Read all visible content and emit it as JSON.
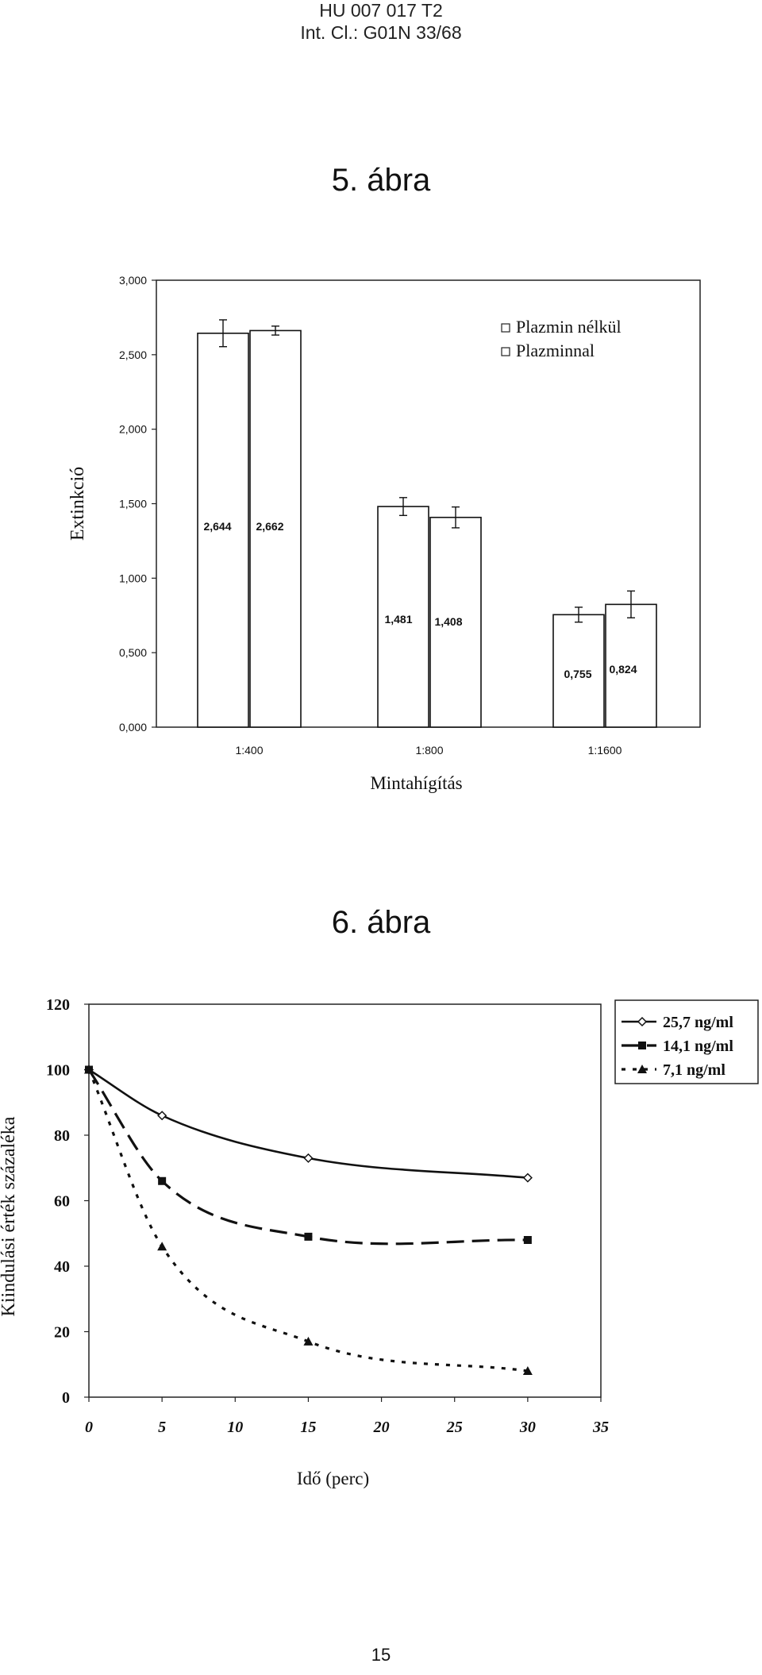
{
  "header": {
    "line1": "HU 007 017 T2",
    "line2": "Int. Cl.: G01N 33/68"
  },
  "figure5": {
    "title": "5. ábra"
  },
  "figure6": {
    "title": "6. ábra"
  },
  "page_number": "15",
  "chart_data": [
    {
      "type": "bar",
      "title": "5. ábra",
      "xlabel": "Mintahígítás",
      "ylabel": "Extinkció",
      "ylim": [
        0,
        3
      ],
      "yticks": [
        "0,000",
        "0,500",
        "1,000",
        "1,500",
        "2,000",
        "2,500",
        "3,000"
      ],
      "categories": [
        "1:400",
        "1:800",
        "1:1600"
      ],
      "series": [
        {
          "name": "Plazmin nélkül",
          "values": [
            2.644,
            1.481,
            0.755
          ],
          "labels": [
            "2,644",
            "1,481",
            "0,755"
          ],
          "errors": [
            0.09,
            0.06,
            0.05
          ]
        },
        {
          "name": "Plazminnal",
          "values": [
            2.662,
            1.408,
            0.824
          ],
          "labels": [
            "2,662",
            "1,408",
            "0,824"
          ],
          "errors": [
            0.03,
            0.07,
            0.09
          ]
        }
      ],
      "legend": "top-right",
      "grid": false
    },
    {
      "type": "line",
      "title": "6. ábra",
      "xlabel": "Idő (perc)",
      "ylabel": "Kiindulási érték százaléka",
      "xlim": [
        0,
        35
      ],
      "ylim": [
        0,
        120
      ],
      "xticks": [
        "0",
        "5",
        "10",
        "15",
        "20",
        "25",
        "30",
        "35"
      ],
      "yticks": [
        "0",
        "20",
        "40",
        "60",
        "80",
        "100",
        "120"
      ],
      "x": [
        0,
        5,
        15,
        30
      ],
      "series": [
        {
          "name": "25,7 ng/ml",
          "values": [
            100,
            86,
            73,
            67
          ],
          "style": "solid",
          "marker": "diamond"
        },
        {
          "name": "14,1 ng/ml",
          "values": [
            100,
            66,
            49,
            48
          ],
          "style": "dashed",
          "marker": "square"
        },
        {
          "name": "7,1 ng/ml",
          "values": [
            100,
            46,
            17,
            8
          ],
          "style": "dotted",
          "marker": "triangle"
        }
      ],
      "legend": "top-right",
      "grid": false
    }
  ]
}
